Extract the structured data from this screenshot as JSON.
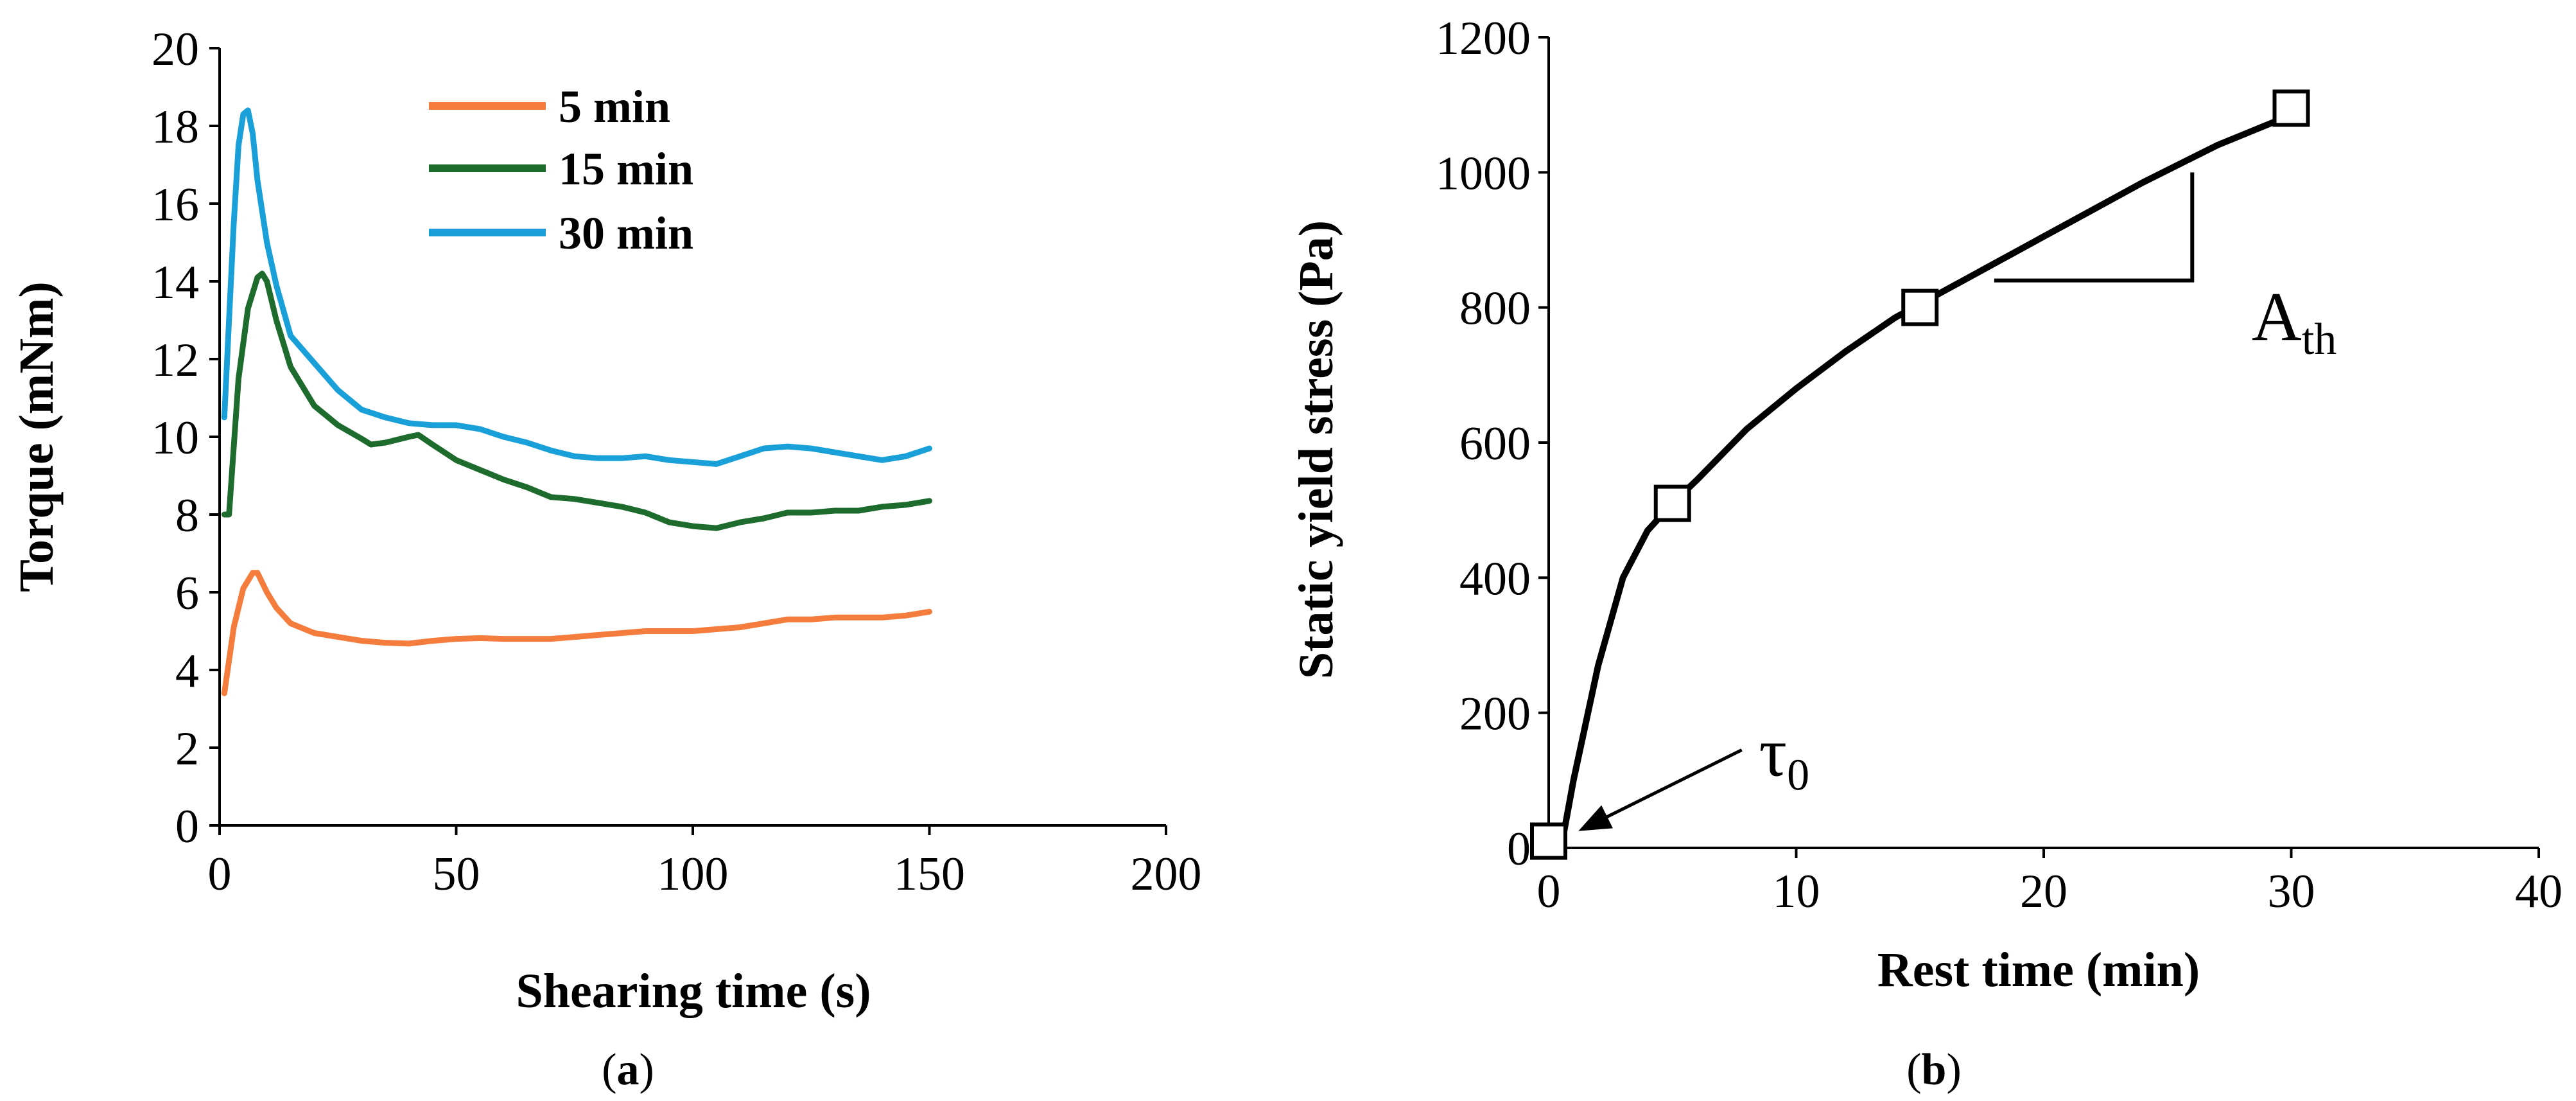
{
  "chart_data": [
    {
      "id": "a",
      "type": "line",
      "caption_letter": "a",
      "xlabel": "Shearing time (s)",
      "ylabel": "Torque  (mNm)",
      "xlim": [
        0,
        200
      ],
      "ylim": [
        0,
        20
      ],
      "xticks": [
        0,
        50,
        100,
        150,
        200
      ],
      "yticks": [
        0,
        2,
        4,
        6,
        8,
        10,
        12,
        14,
        16,
        18,
        20
      ],
      "grid": false,
      "legend_position": "top-center",
      "series": [
        {
          "name": "5 min",
          "color": "#F47C3C",
          "x": [
            1,
            3,
            5,
            7,
            8,
            10,
            12,
            15,
            20,
            25,
            30,
            35,
            40,
            45,
            50,
            55,
            60,
            65,
            70,
            75,
            80,
            85,
            90,
            95,
            100,
            105,
            110,
            115,
            120,
            125,
            130,
            135,
            140,
            145,
            150
          ],
          "y": [
            3.4,
            5.1,
            6.1,
            6.5,
            6.5,
            6.0,
            5.6,
            5.2,
            4.95,
            4.85,
            4.75,
            4.7,
            4.68,
            4.75,
            4.8,
            4.82,
            4.8,
            4.8,
            4.8,
            4.85,
            4.9,
            4.95,
            5.0,
            5.0,
            5.0,
            5.05,
            5.1,
            5.2,
            5.3,
            5.3,
            5.35,
            5.35,
            5.35,
            5.4,
            5.5
          ]
        },
        {
          "name": "15 min",
          "color": "#1E6B2E",
          "x": [
            1,
            2,
            4,
            6,
            8,
            9,
            10,
            12,
            15,
            18,
            20,
            25,
            30,
            32,
            35,
            40,
            42,
            45,
            50,
            55,
            60,
            65,
            70,
            75,
            80,
            85,
            90,
            95,
            100,
            105,
            110,
            115,
            120,
            125,
            130,
            135,
            140,
            145,
            150
          ],
          "y": [
            8.0,
            8.0,
            11.5,
            13.3,
            14.1,
            14.2,
            14.0,
            13.0,
            11.8,
            11.2,
            10.8,
            10.3,
            9.95,
            9.8,
            9.85,
            10.0,
            10.05,
            9.8,
            9.4,
            9.15,
            8.9,
            8.7,
            8.45,
            8.4,
            8.3,
            8.2,
            8.05,
            7.8,
            7.7,
            7.65,
            7.8,
            7.9,
            8.05,
            8.05,
            8.1,
            8.1,
            8.2,
            8.25,
            8.35
          ]
        },
        {
          "name": "30 min",
          "color": "#1AA0D8",
          "x": [
            1,
            2,
            3,
            4,
            5,
            6,
            7,
            8,
            10,
            12,
            15,
            20,
            25,
            30,
            35,
            40,
            45,
            50,
            55,
            60,
            65,
            70,
            75,
            80,
            85,
            90,
            95,
            100,
            105,
            110,
            115,
            120,
            125,
            130,
            135,
            140,
            145,
            150
          ],
          "y": [
            10.5,
            13.0,
            15.5,
            17.5,
            18.3,
            18.4,
            17.8,
            16.6,
            15.0,
            13.9,
            12.6,
            11.9,
            11.2,
            10.7,
            10.5,
            10.35,
            10.3,
            10.3,
            10.2,
            10.0,
            9.85,
            9.65,
            9.5,
            9.45,
            9.45,
            9.5,
            9.4,
            9.35,
            9.3,
            9.5,
            9.7,
            9.75,
            9.7,
            9.6,
            9.5,
            9.4,
            9.5,
            9.7
          ]
        }
      ]
    },
    {
      "id": "b",
      "type": "scatter",
      "caption_letter": "b",
      "xlabel": "Rest time (min)",
      "ylabel": "Static yield stress (Pa)",
      "xlim": [
        0,
        40
      ],
      "ylim": [
        0,
        1200
      ],
      "xticks": [
        0,
        10,
        20,
        30,
        40
      ],
      "yticks": [
        0,
        200,
        400,
        600,
        800,
        1000,
        1200
      ],
      "grid": false,
      "points": [
        {
          "x": 0,
          "y": 10
        },
        {
          "x": 5,
          "y": 510
        },
        {
          "x": 15,
          "y": 800
        },
        {
          "x": 30,
          "y": 1095
        }
      ],
      "fit_curve": {
        "x": [
          0.5,
          1,
          2,
          3,
          4,
          5,
          6,
          8,
          10,
          12,
          14,
          15,
          18,
          21,
          24,
          27,
          30
        ],
        "y": [
          0,
          100,
          270,
          400,
          470,
          510,
          545,
          620,
          680,
          735,
          785,
          805,
          865,
          925,
          985,
          1040,
          1085
        ]
      },
      "annotations": {
        "tau0_symbol": "τ",
        "tau0_subscript": "0",
        "tau0_arrow_tip": {
          "x": 1.2,
          "y": 25
        },
        "tau0_arrow_tail": {
          "x": 7.8,
          "y": 145
        },
        "tau0_label_at": {
          "x": 8.5,
          "y": 145
        },
        "slope_corner": {
          "x": 26,
          "y": 840
        },
        "slope_start": {
          "x": 18,
          "y": 840
        },
        "slope_top": {
          "x": 26,
          "y": 1000
        },
        "ath_main": "A",
        "ath_sub": "th",
        "ath_label_at": {
          "x": 28.4,
          "y": 790
        }
      }
    }
  ]
}
